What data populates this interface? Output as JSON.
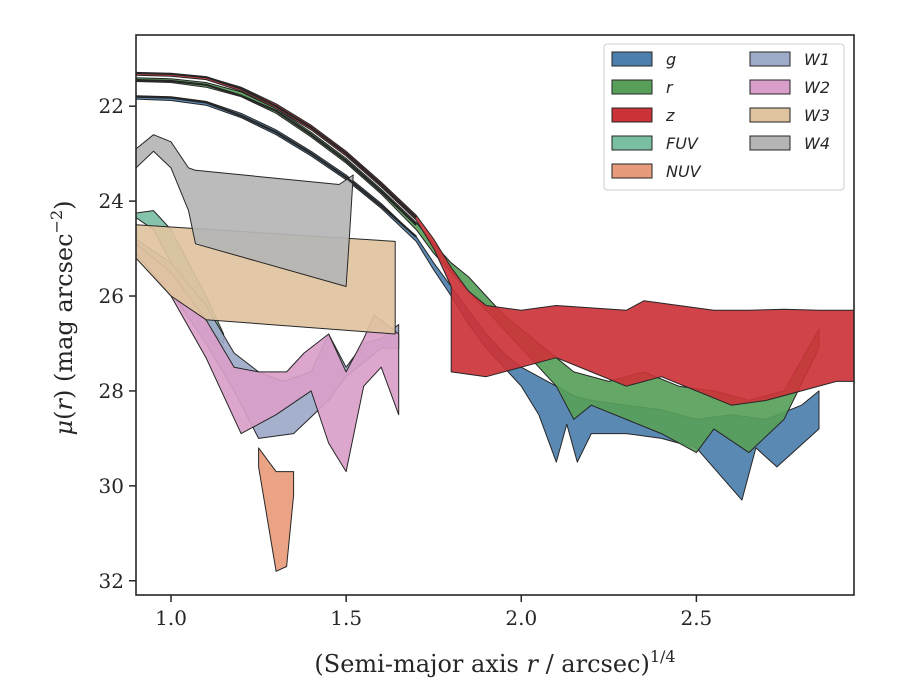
{
  "chart_data": {
    "type": "area",
    "title": "",
    "xlabel": "(Semi-major axis r / arcsec)",
    "xlabel_parts": {
      "prefix": "(Semi-major axis ",
      "var": "r",
      "middle": " / arcsec)",
      "sup": "1/4"
    },
    "ylabel": "μ(r) (mag arcsec⁻²)",
    "ylabel_parts": {
      "mu": "μ",
      "open": "(",
      "var": "r",
      "close": ")",
      "unit": " (mag arcsec",
      "sup": "−2",
      "end": ")"
    },
    "xlim": [
      0.9,
      2.95
    ],
    "ylim": [
      32.3,
      20.5
    ],
    "y_inverted": true,
    "xticks": [
      1.0,
      1.5,
      2.0,
      2.5
    ],
    "xtick_labels": [
      "1.0",
      "1.5",
      "2.0",
      "2.5"
    ],
    "yticks": [
      22,
      24,
      26,
      28,
      30,
      32
    ],
    "ytick_labels": [
      "22",
      "24",
      "26",
      "28",
      "30",
      "32"
    ],
    "grid": false,
    "legend": {
      "placement": "top-right",
      "columns": 2
    },
    "series": [
      {
        "name": "g",
        "color": "#4c7fad",
        "upper": [
          [
            0.9,
            21.78
          ],
          [
            1.0,
            21.8
          ],
          [
            1.1,
            21.9
          ],
          [
            1.2,
            22.15
          ],
          [
            1.3,
            22.5
          ],
          [
            1.4,
            22.95
          ],
          [
            1.5,
            23.45
          ],
          [
            1.6,
            24.05
          ],
          [
            1.7,
            24.75
          ],
          [
            1.75,
            25.3
          ],
          [
            1.8,
            25.8
          ],
          [
            1.85,
            26.3
          ],
          [
            1.9,
            26.8
          ],
          [
            1.95,
            27.2
          ],
          [
            2.0,
            27.5
          ],
          [
            2.05,
            27.7
          ],
          [
            2.1,
            27.9
          ],
          [
            2.15,
            28.1
          ],
          [
            2.2,
            28.2
          ],
          [
            2.3,
            28.3
          ],
          [
            2.4,
            28.4
          ],
          [
            2.5,
            28.6
          ],
          [
            2.6,
            28.5
          ],
          [
            2.7,
            28.6
          ],
          [
            2.8,
            28.3
          ],
          [
            2.85,
            28.0
          ]
        ],
        "lower": [
          [
            0.9,
            21.85
          ],
          [
            1.0,
            21.88
          ],
          [
            1.1,
            21.98
          ],
          [
            1.2,
            22.24
          ],
          [
            1.3,
            22.6
          ],
          [
            1.4,
            23.05
          ],
          [
            1.5,
            23.55
          ],
          [
            1.6,
            24.15
          ],
          [
            1.7,
            24.85
          ],
          [
            1.75,
            25.45
          ],
          [
            1.8,
            26.0
          ],
          [
            1.85,
            26.6
          ],
          [
            1.9,
            27.1
          ],
          [
            1.95,
            27.5
          ],
          [
            2.0,
            27.9
          ],
          [
            2.05,
            28.5
          ],
          [
            2.1,
            29.5
          ],
          [
            2.13,
            28.7
          ],
          [
            2.16,
            29.5
          ],
          [
            2.2,
            28.9
          ],
          [
            2.3,
            28.9
          ],
          [
            2.4,
            29.0
          ],
          [
            2.5,
            29.2
          ],
          [
            2.63,
            30.3
          ],
          [
            2.67,
            29.2
          ],
          [
            2.73,
            29.6
          ],
          [
            2.85,
            28.8
          ]
        ]
      },
      {
        "name": "r",
        "color": "#58a05a",
        "upper": [
          [
            0.9,
            21.4
          ],
          [
            1.0,
            21.42
          ],
          [
            1.1,
            21.5
          ],
          [
            1.2,
            21.7
          ],
          [
            1.3,
            22.05
          ],
          [
            1.4,
            22.55
          ],
          [
            1.5,
            23.1
          ],
          [
            1.6,
            23.75
          ],
          [
            1.7,
            24.45
          ],
          [
            1.75,
            24.9
          ],
          [
            1.8,
            25.3
          ],
          [
            1.85,
            25.6
          ],
          [
            1.9,
            26.0
          ],
          [
            1.95,
            26.4
          ],
          [
            2.0,
            26.7
          ],
          [
            2.05,
            27.0
          ],
          [
            2.1,
            27.3
          ],
          [
            2.15,
            27.6
          ],
          [
            2.25,
            27.8
          ],
          [
            2.35,
            27.6
          ],
          [
            2.45,
            27.9
          ],
          [
            2.55,
            28.0
          ],
          [
            2.65,
            28.2
          ],
          [
            2.75,
            28.0
          ],
          [
            2.85,
            26.7
          ]
        ],
        "lower": [
          [
            0.9,
            21.48
          ],
          [
            1.0,
            21.5
          ],
          [
            1.1,
            21.6
          ],
          [
            1.2,
            21.8
          ],
          [
            1.3,
            22.15
          ],
          [
            1.4,
            22.65
          ],
          [
            1.5,
            23.2
          ],
          [
            1.6,
            23.85
          ],
          [
            1.7,
            24.6
          ],
          [
            1.75,
            25.1
          ],
          [
            1.8,
            25.5
          ],
          [
            1.85,
            25.9
          ],
          [
            1.9,
            26.3
          ],
          [
            1.95,
            26.7
          ],
          [
            2.0,
            27.1
          ],
          [
            2.05,
            27.5
          ],
          [
            2.1,
            27.9
          ],
          [
            2.15,
            28.6
          ],
          [
            2.2,
            28.3
          ],
          [
            2.3,
            28.6
          ],
          [
            2.4,
            28.9
          ],
          [
            2.5,
            29.3
          ],
          [
            2.55,
            28.8
          ],
          [
            2.65,
            29.3
          ],
          [
            2.75,
            28.6
          ],
          [
            2.85,
            27.1
          ]
        ]
      },
      {
        "name": "z",
        "color": "#cc3338",
        "upper": [
          [
            0.9,
            21.3
          ],
          [
            1.0,
            21.32
          ],
          [
            1.1,
            21.38
          ],
          [
            1.2,
            21.6
          ],
          [
            1.3,
            21.95
          ],
          [
            1.4,
            22.4
          ],
          [
            1.5,
            22.95
          ],
          [
            1.6,
            23.6
          ],
          [
            1.7,
            24.3
          ],
          [
            1.75,
            24.8
          ],
          [
            1.8,
            25.4
          ],
          [
            1.85,
            25.9
          ],
          [
            1.9,
            26.2
          ],
          [
            2.0,
            26.3
          ],
          [
            2.1,
            26.2
          ],
          [
            2.2,
            26.25
          ],
          [
            2.3,
            26.3
          ],
          [
            2.35,
            26.1
          ],
          [
            2.45,
            26.2
          ],
          [
            2.55,
            26.3
          ],
          [
            2.65,
            26.3
          ],
          [
            2.75,
            26.28
          ],
          [
            2.85,
            26.3
          ],
          [
            2.95,
            26.3
          ]
        ],
        "lower": [
          [
            0.9,
            21.35
          ],
          [
            1.0,
            21.37
          ],
          [
            1.1,
            21.44
          ],
          [
            1.2,
            21.68
          ],
          [
            1.3,
            22.05
          ],
          [
            1.4,
            22.5
          ],
          [
            1.5,
            23.05
          ],
          [
            1.6,
            23.7
          ],
          [
            1.7,
            24.4
          ],
          [
            1.75,
            25.0
          ],
          [
            1.8,
            25.8
          ],
          [
            1.8,
            27.6
          ],
          [
            1.9,
            27.7
          ],
          [
            2.0,
            27.5
          ],
          [
            2.1,
            27.3
          ],
          [
            2.2,
            27.6
          ],
          [
            2.3,
            27.9
          ],
          [
            2.4,
            27.7
          ],
          [
            2.5,
            28.0
          ],
          [
            2.6,
            28.3
          ],
          [
            2.7,
            28.2
          ],
          [
            2.8,
            28.0
          ],
          [
            2.9,
            27.8
          ],
          [
            2.95,
            27.8
          ]
        ]
      },
      {
        "name": "FUV",
        "color": "#7bbfa3",
        "upper": [
          [
            0.9,
            24.25
          ],
          [
            0.95,
            24.2
          ],
          [
            1.0,
            24.6
          ],
          [
            1.05,
            25.3
          ],
          [
            1.1,
            26.0
          ],
          [
            1.15,
            26.8
          ]
        ],
        "lower": [
          [
            0.9,
            24.35
          ],
          [
            0.95,
            24.6
          ],
          [
            1.0,
            25.3
          ],
          [
            1.05,
            26.0
          ],
          [
            1.1,
            26.6
          ],
          [
            1.15,
            27.0
          ]
        ]
      },
      {
        "name": "NUV",
        "color": "#e89b7b",
        "upper": [
          [
            1.25,
            29.2
          ],
          [
            1.3,
            29.7
          ],
          [
            1.35,
            29.7
          ]
        ],
        "lower": [
          [
            1.25,
            29.6
          ],
          [
            1.3,
            31.8
          ],
          [
            1.33,
            31.7
          ],
          [
            1.35,
            30.2
          ]
        ]
      },
      {
        "name": "W1",
        "color": "#9daac8",
        "upper": [
          [
            0.9,
            24.8
          ],
          [
            1.0,
            25.3
          ],
          [
            1.1,
            26.2
          ],
          [
            1.18,
            27.2
          ],
          [
            1.25,
            27.6
          ],
          [
            1.32,
            27.8
          ],
          [
            1.4,
            27.6
          ],
          [
            1.45,
            26.8
          ],
          [
            1.5,
            27.5
          ],
          [
            1.55,
            27.0
          ],
          [
            1.6,
            26.9
          ],
          [
            1.65,
            26.6
          ]
        ],
        "lower": [
          [
            0.9,
            25.1
          ],
          [
            1.0,
            25.9
          ],
          [
            1.1,
            27.0
          ],
          [
            1.18,
            28.0
          ],
          [
            1.25,
            29.0
          ],
          [
            1.35,
            28.9
          ],
          [
            1.45,
            28.2
          ],
          [
            1.5,
            27.7
          ],
          [
            1.55,
            27.4
          ],
          [
            1.6,
            27.1
          ],
          [
            1.65,
            27.1
          ]
        ]
      },
      {
        "name": "W2",
        "color": "#d99ec9",
        "upper": [
          [
            0.9,
            24.9
          ],
          [
            1.0,
            25.5
          ],
          [
            1.1,
            26.5
          ],
          [
            1.18,
            27.5
          ],
          [
            1.25,
            27.6
          ],
          [
            1.33,
            27.6
          ],
          [
            1.38,
            27.2
          ],
          [
            1.45,
            26.8
          ],
          [
            1.5,
            27.6
          ],
          [
            1.55,
            26.9
          ],
          [
            1.58,
            26.4
          ],
          [
            1.65,
            26.8
          ]
        ],
        "lower": [
          [
            0.9,
            25.1
          ],
          [
            1.0,
            26.0
          ],
          [
            1.1,
            27.3
          ],
          [
            1.2,
            28.9
          ],
          [
            1.3,
            28.5
          ],
          [
            1.4,
            28.0
          ],
          [
            1.45,
            29.1
          ],
          [
            1.5,
            29.7
          ],
          [
            1.55,
            27.9
          ],
          [
            1.6,
            27.5
          ],
          [
            1.65,
            28.5
          ]
        ]
      },
      {
        "name": "W3",
        "color": "#dfc39f",
        "upper": [
          [
            0.9,
            24.5
          ],
          [
            1.64,
            24.85
          ]
        ],
        "lower": [
          [
            0.9,
            25.2
          ],
          [
            1.0,
            26.0
          ],
          [
            1.1,
            26.5
          ],
          [
            1.64,
            26.8
          ]
        ]
      },
      {
        "name": "W4",
        "color": "#b5b5b5",
        "upper": [
          [
            0.9,
            22.9
          ],
          [
            0.95,
            22.6
          ],
          [
            1.0,
            22.75
          ],
          [
            1.05,
            23.3
          ],
          [
            1.07,
            23.35
          ],
          [
            1.48,
            23.65
          ],
          [
            1.52,
            23.45
          ]
        ],
        "lower": [
          [
            0.9,
            23.3
          ],
          [
            0.95,
            22.95
          ],
          [
            1.0,
            23.3
          ],
          [
            1.05,
            24.2
          ],
          [
            1.07,
            24.9
          ],
          [
            1.5,
            25.8
          ],
          [
            1.51,
            24.7
          ],
          [
            1.52,
            23.45
          ]
        ]
      }
    ],
    "curves": [
      {
        "series": "g",
        "points": [
          [
            0.9,
            21.8
          ],
          [
            1.0,
            21.82
          ],
          [
            1.1,
            21.92
          ],
          [
            1.2,
            22.2
          ],
          [
            1.3,
            22.55
          ],
          [
            1.4,
            23.0
          ],
          [
            1.5,
            23.5
          ],
          [
            1.6,
            24.1
          ],
          [
            1.7,
            24.75
          ]
        ]
      },
      {
        "series": "r",
        "points": [
          [
            0.9,
            21.45
          ],
          [
            1.0,
            21.47
          ],
          [
            1.1,
            21.55
          ],
          [
            1.2,
            21.78
          ],
          [
            1.3,
            22.1
          ],
          [
            1.4,
            22.6
          ],
          [
            1.5,
            23.15
          ],
          [
            1.6,
            23.8
          ],
          [
            1.7,
            24.5
          ]
        ]
      },
      {
        "series": "z",
        "points": [
          [
            0.9,
            21.3
          ],
          [
            1.0,
            21.32
          ],
          [
            1.1,
            21.39
          ],
          [
            1.2,
            21.63
          ],
          [
            1.3,
            22.0
          ],
          [
            1.4,
            22.45
          ],
          [
            1.5,
            23.0
          ],
          [
            1.6,
            23.65
          ],
          [
            1.7,
            24.35
          ]
        ]
      }
    ],
    "colors": {
      "axes": "#262626",
      "edge": "#262626",
      "background": "#ffffff"
    }
  }
}
